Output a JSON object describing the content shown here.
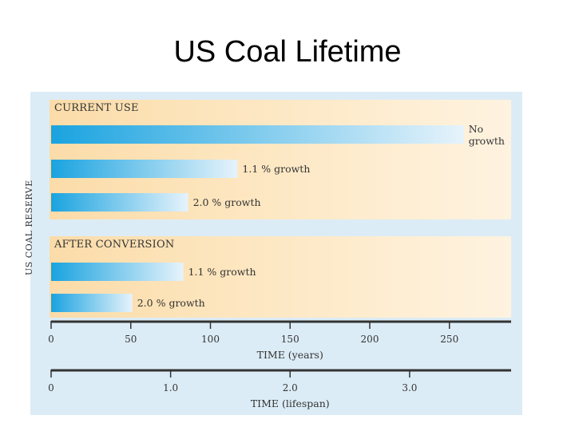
{
  "slide": {
    "title": "US Coal Lifetime"
  },
  "chart_data": {
    "type": "bar",
    "orientation": "horizontal",
    "ylabel": "US COAL RESERVE",
    "xlim": [
      0,
      290
    ],
    "groups": [
      {
        "label": "CURRENT USE",
        "bars": [
          {
            "label": "No growth",
            "value": 259
          },
          {
            "label": "1.1 % growth",
            "value": 117
          },
          {
            "label": "2.0 % growth",
            "value": 86
          }
        ]
      },
      {
        "label": "AFTER CONVERSION",
        "bars": [
          {
            "label": "1.1 % growth",
            "value": 83
          },
          {
            "label": "2.0 % growth",
            "value": 51
          }
        ]
      }
    ],
    "axes": [
      {
        "title": "TIME (years)",
        "ticks": [
          0,
          50,
          100,
          150,
          200,
          250
        ],
        "tick_labels": [
          "0",
          "50",
          "100",
          "150",
          "200",
          "250"
        ]
      },
      {
        "title": "TIME (lifespan)",
        "ticks": [
          0,
          75,
          150,
          225
        ],
        "tick_labels": [
          "0",
          "1.0",
          "2.0",
          "3.0"
        ]
      }
    ],
    "colors": {
      "bar_start": "#1aa3e0",
      "bar_end": "#e6f3fb"
    }
  }
}
